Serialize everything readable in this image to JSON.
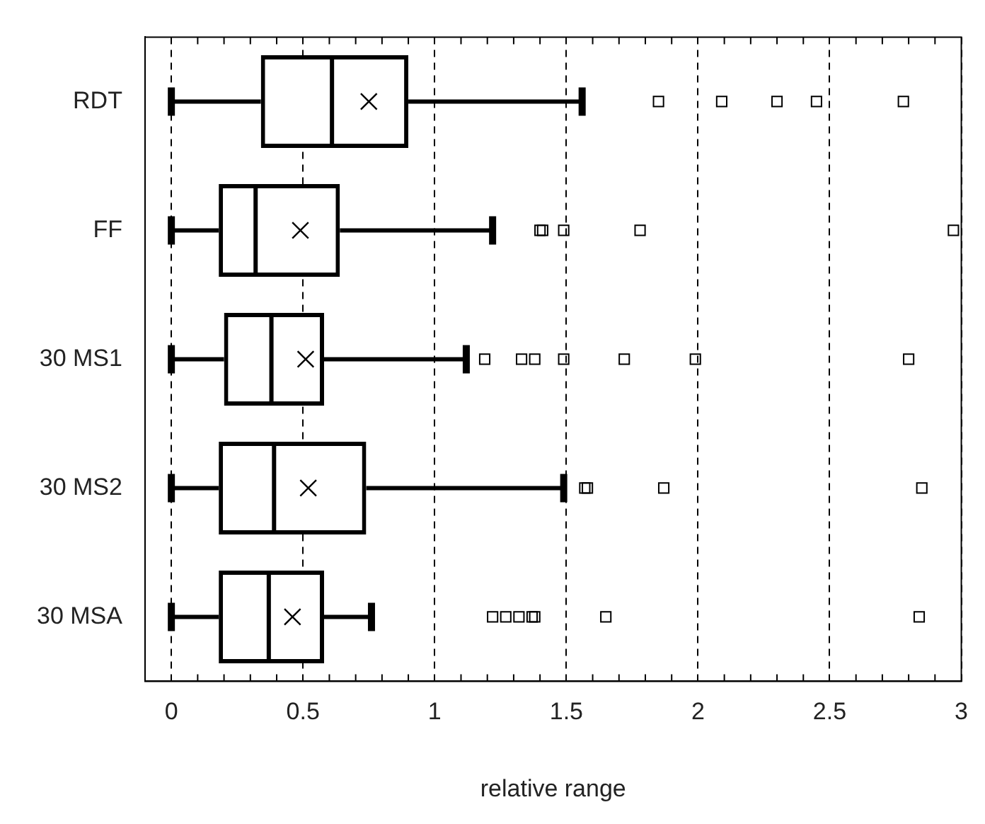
{
  "chart_data": {
    "type": "box",
    "orientation": "horizontal",
    "xlabel": "relative range",
    "categories": [
      "RDT",
      "FF",
      "30 MS1",
      "30 MS2",
      "30 MSA"
    ],
    "boxes": [
      {
        "low": 0,
        "q1": 0.34,
        "median": 0.61,
        "q3": 0.9,
        "high": 1.56,
        "mean": 0.75,
        "outliers": [
          1.85,
          2.09,
          2.3,
          2.45,
          2.78
        ]
      },
      {
        "low": 0,
        "q1": 0.18,
        "median": 0.32,
        "q3": 0.64,
        "high": 1.22,
        "mean": 0.49,
        "outliers": [
          1.4,
          1.41,
          1.49,
          1.78,
          2.97
        ]
      },
      {
        "low": 0,
        "q1": 0.2,
        "median": 0.38,
        "q3": 0.58,
        "high": 1.12,
        "mean": 0.51,
        "outliers": [
          1.19,
          1.33,
          1.38,
          1.49,
          1.72,
          1.99,
          2.8
        ]
      },
      {
        "low": 0,
        "q1": 0.18,
        "median": 0.39,
        "q3": 0.74,
        "high": 1.49,
        "mean": 0.52,
        "outliers": [
          1.57,
          1.58,
          1.87,
          2.85
        ]
      },
      {
        "low": 0,
        "q1": 0.18,
        "median": 0.37,
        "q3": 0.58,
        "high": 0.76,
        "mean": 0.46,
        "outliers": [
          1.22,
          1.27,
          1.32,
          1.37,
          1.38,
          1.65,
          2.84
        ]
      }
    ],
    "color": "#000000",
    "xlim": [
      -0.1,
      3.0
    ],
    "xticks": [
      0,
      {
        "value": 0.1,
        "label": null
      },
      {
        "value": 0.2,
        "label": null
      },
      {
        "value": 0.3,
        "label": null
      },
      {
        "value": 0.4,
        "label": null
      },
      0.5,
      {
        "value": 0.6,
        "label": null
      },
      {
        "value": 0.7,
        "label": null
      },
      {
        "value": 0.8,
        "label": null
      },
      {
        "value": 0.9,
        "label": null
      },
      1,
      {
        "value": 1.1,
        "label": null
      },
      {
        "value": 1.2,
        "label": null
      },
      {
        "value": 1.3,
        "label": null
      },
      {
        "value": 1.4,
        "label": null
      },
      1.5,
      {
        "value": 1.6,
        "label": null
      },
      {
        "value": 1.7,
        "label": null
      },
      {
        "value": 1.8,
        "label": null
      },
      {
        "value": 1.9,
        "label": null
      },
      2,
      {
        "value": 2.1,
        "label": null
      },
      {
        "value": 2.2,
        "label": null
      },
      {
        "value": 2.3,
        "label": null
      },
      {
        "value": 2.4,
        "label": null
      },
      2.5,
      {
        "value": 2.6,
        "label": null
      },
      {
        "value": 2.7,
        "label": null
      },
      {
        "value": 2.8,
        "label": null
      },
      {
        "value": 2.9,
        "label": null
      },
      3
    ],
    "grid": "x",
    "legend": false
  }
}
